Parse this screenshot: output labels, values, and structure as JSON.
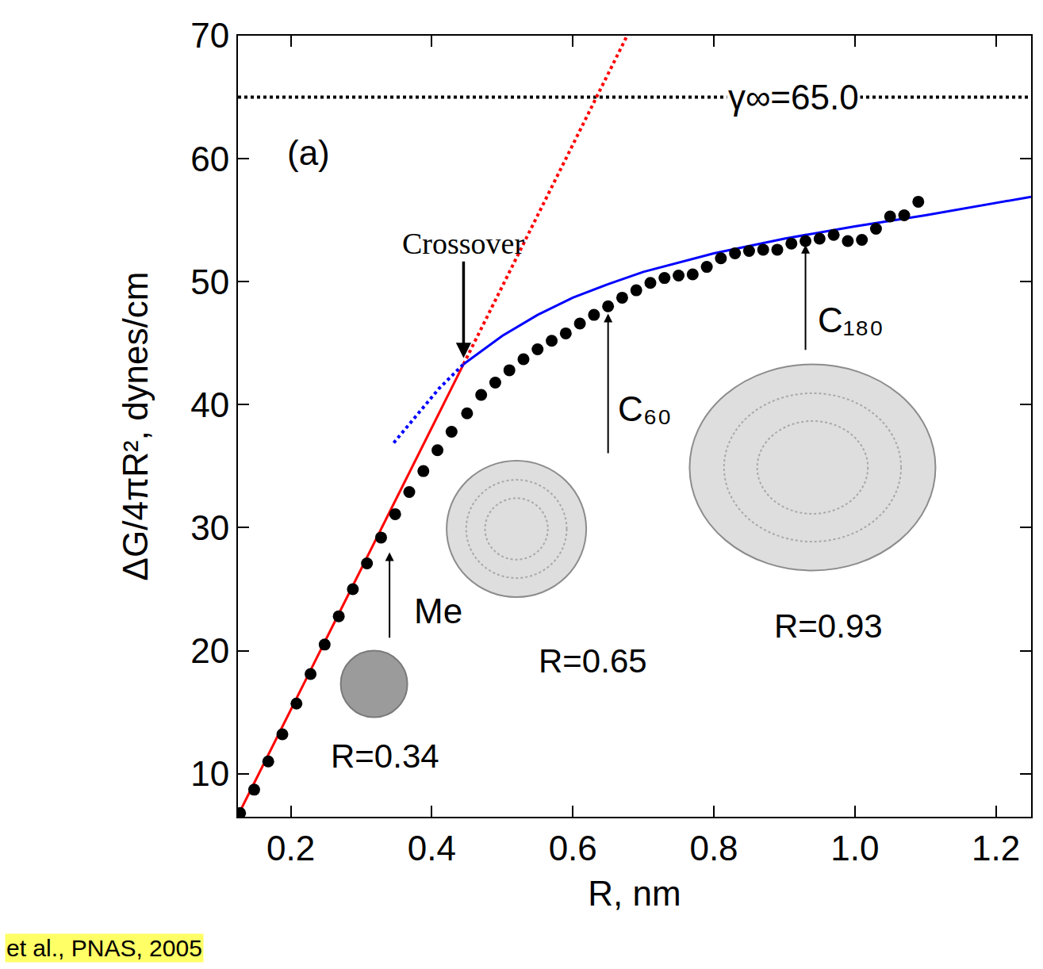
{
  "chart_data": {
    "type": "scatter",
    "xlabel": "R, nm",
    "ylabel": "ΔG/4πR², dynes/cm",
    "panel_label": "(a)",
    "source": "et al., PNAS, 2005",
    "xlim": [
      0.125,
      1.25
    ],
    "ylim": [
      6.5,
      70
    ],
    "xticks": [
      0.2,
      0.4,
      0.6,
      0.8,
      {
        "value": 1.0,
        "label": "1.0"
      },
      1.2
    ],
    "yticks": [
      10,
      20,
      30,
      40,
      50,
      60,
      70
    ],
    "grid": false,
    "reference_line": {
      "value": 65.0,
      "label": "γ∞=65.0",
      "color": "#000000",
      "line_style": "dotted"
    },
    "series": [
      {
        "type": "line",
        "color": "#ff0000",
        "line_style": "solid",
        "x": [
          0.125,
          0.445
        ],
        "values": [
          6.6,
          43.3
        ]
      },
      {
        "type": "line",
        "color": "#ff0000",
        "line_style": "dotted",
        "x": [
          0.445,
          0.677
        ],
        "values": [
          43.3,
          70.0
        ]
      },
      {
        "type": "line",
        "color": "#0000ff",
        "line_style": "dotted",
        "x": [
          0.346,
          0.38,
          0.41,
          0.445
        ],
        "values": [
          36.9,
          39.2,
          41.3,
          43.3
        ]
      },
      {
        "type": "line",
        "color": "#0000ff",
        "line_style": "solid",
        "x": [
          0.445,
          0.5,
          0.55,
          0.6,
          0.65,
          0.7,
          0.8,
          0.9,
          1.0,
          1.1,
          1.25
        ],
        "values": [
          43.3,
          45.6,
          47.3,
          48.7,
          49.8,
          50.8,
          52.3,
          53.5,
          54.5,
          55.4,
          56.9
        ]
      },
      {
        "type": "scatter",
        "color": "#000000",
        "marker": "circle",
        "x": [
          0.128,
          0.148,
          0.168,
          0.188,
          0.208,
          0.228,
          0.248,
          0.268,
          0.288,
          0.308,
          0.328,
          0.348,
          0.368,
          0.388,
          0.408,
          0.428,
          0.45,
          0.47,
          0.49,
          0.51,
          0.53,
          0.55,
          0.57,
          0.59,
          0.61,
          0.63,
          0.65,
          0.67,
          0.69,
          0.71,
          0.73,
          0.75,
          0.77,
          0.79,
          0.81,
          0.83,
          0.85,
          0.87,
          0.89,
          0.91,
          0.93,
          0.95,
          0.97,
          0.99,
          1.01,
          1.03,
          1.05,
          1.07,
          1.09
        ],
        "values": [
          6.8,
          8.7,
          11.0,
          13.2,
          15.7,
          18.1,
          20.5,
          22.8,
          25.0,
          27.1,
          29.2,
          31.1,
          32.9,
          34.6,
          36.3,
          37.8,
          39.3,
          40.8,
          41.8,
          42.8,
          43.7,
          44.5,
          45.2,
          45.8,
          46.6,
          47.3,
          48.0,
          48.7,
          49.3,
          49.9,
          50.3,
          50.5,
          50.6,
          51.2,
          51.9,
          52.3,
          52.5,
          52.6,
          52.6,
          53.1,
          53.3,
          53.5,
          53.8,
          53.3,
          53.4,
          54.3,
          55.3,
          55.4,
          56.5
        ]
      }
    ],
    "crossover": {
      "text": "Crossover",
      "x": 0.445,
      "y": 43.8
    },
    "molecules": [
      {
        "name": "Me",
        "label": "R=0.34",
        "x": 0.34,
        "y": 28.0
      },
      {
        "name": "C₆₀",
        "label": "R=0.65",
        "x": 0.65,
        "y": 47.4
      },
      {
        "name": "C₁₈₀",
        "label": "R=0.93",
        "x": 0.93,
        "y": 53.0
      }
    ]
  }
}
